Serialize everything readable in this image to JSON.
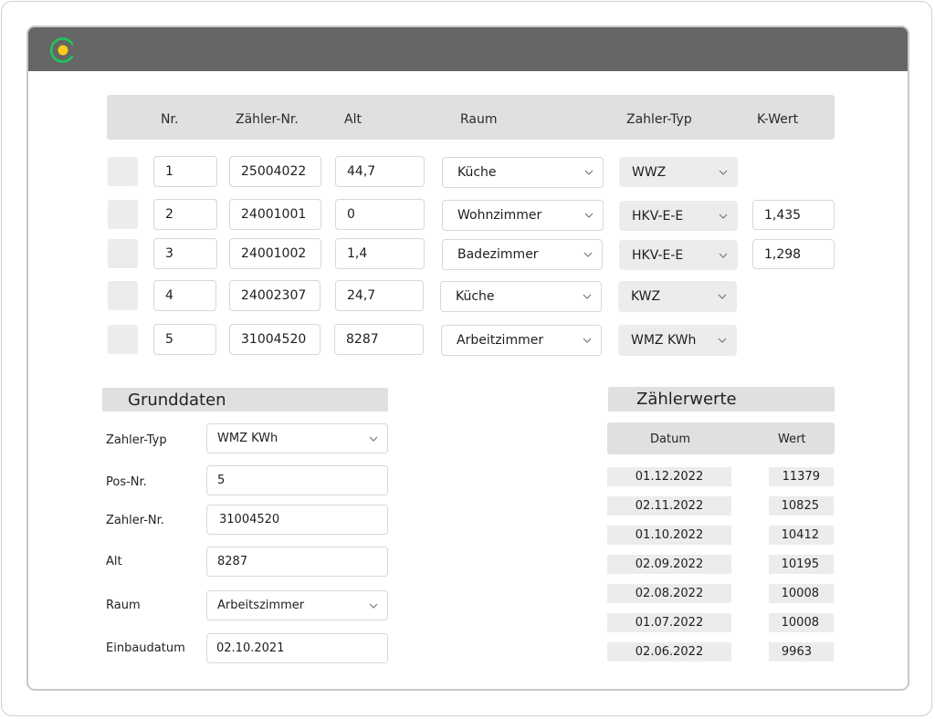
{
  "table": {
    "headers": [
      "Nr.",
      "Zähler-Nr.",
      "Alt",
      "Raum",
      "Zahler-Typ",
      "K-Wert"
    ],
    "rows": [
      {
        "nr": "1",
        "zaehler": "25004022",
        "alt": "44,7",
        "raum": "Küche",
        "typ": "WWZ",
        "kwert": ""
      },
      {
        "nr": "2",
        "zaehler": "24001001",
        "alt": "0",
        "raum": "Wohnzimmer",
        "typ": "HKV-E-E",
        "kwert": "1,435"
      },
      {
        "nr": "3",
        "zaehler": "24001002",
        "alt": "1,4",
        "raum": "Badezimmer",
        "typ": "HKV-E-E",
        "kwert": "1,298"
      },
      {
        "nr": "4",
        "zaehler": "24002307",
        "alt": "24,7",
        "raum": "Küche",
        "typ": "KWZ",
        "kwert": ""
      },
      {
        "nr": "5",
        "zaehler": "31004520",
        "alt": "8287",
        "raum": "Arbeitzimmer",
        "typ": "WMZ KWh",
        "kwert": ""
      }
    ]
  },
  "grunddaten": {
    "title": "Grunddaten",
    "fields": [
      {
        "label": "Zahler-Typ",
        "value": "WMZ KWh",
        "type": "select"
      },
      {
        "label": "Pos-Nr.",
        "value": "5",
        "type": "input"
      },
      {
        "label": "Zahler-Nr.",
        "value": "31004520",
        "type": "input"
      },
      {
        "label": "Alt",
        "value": "8287",
        "type": "input"
      },
      {
        "label": "Raum",
        "value": "Arbeitszimmer",
        "type": "select"
      },
      {
        "label": "Einbaudatum",
        "value": "02.10.2021",
        "type": "input"
      }
    ]
  },
  "zaehlerwerte": {
    "title": "Zählerwerte",
    "col_datum": "Datum",
    "col_wert": "Wert",
    "rows": [
      {
        "datum": "01.12.2022",
        "wert": "11379"
      },
      {
        "datum": "02.11.2022",
        "wert": "10825"
      },
      {
        "datum": "01.10.2022",
        "wert": "10412"
      },
      {
        "datum": "02.09.2022",
        "wert": "10195"
      },
      {
        "datum": "02.08.2022",
        "wert": "10008"
      },
      {
        "datum": "01.07.2022",
        "wert": "10008"
      },
      {
        "datum": "02.06.2022",
        "wert": "9963"
      }
    ]
  },
  "colors": {
    "title_bar": "#666666",
    "logo_ring": "#22c55e",
    "logo_dot": "#facc15",
    "header_bg": "#e0e0e0",
    "field_grey": "#ececec"
  },
  "icons": {
    "logo": "app-logo-icon",
    "dropdown": "chevron-down-icon"
  }
}
